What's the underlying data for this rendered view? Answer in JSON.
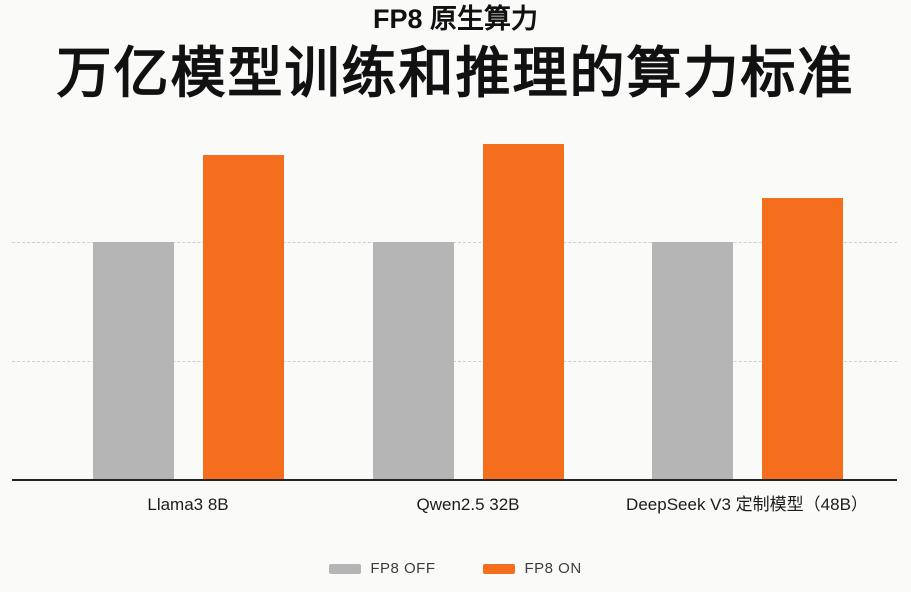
{
  "chart_data": {
    "type": "bar",
    "title": "万亿模型训练和推理的算力标准",
    "subtitle": "FP8 原生算力",
    "categories": [
      "Llama3 8B",
      "Qwen2.5 32B",
      "DeepSeek V3 定制模型（48B）"
    ],
    "series": [
      {
        "name": "FP8 OFF",
        "color": "#b5b5b5",
        "values": [
          2.0,
          2.0,
          2.0
        ]
      },
      {
        "name": "FP8 ON",
        "color": "#f46e1e",
        "values": [
          2.73,
          2.82,
          2.37
        ]
      }
    ],
    "value_note": "y-axis has no tick labels; values estimated in gridline units (baseline = 0, dashed gridlines at 1 and 2)",
    "fp8_on_relative_to_off": [
      1.37,
      1.41,
      1.19
    ],
    "xlabel": "",
    "ylabel": "",
    "ylim": [
      0,
      2.95
    ],
    "gridlines": [
      1,
      2
    ],
    "grid": "horizontal dashed, no y tick labels",
    "legend_position": "bottom-center"
  },
  "colors": {
    "background": "#fafaf9",
    "bar_fp8_off": "#b5b5b5",
    "bar_fp8_on": "#f46e1e",
    "gridline": "#cfcfcf",
    "axis_line": "#242424",
    "title_text": "#111111",
    "axis_label_text": "#1c1c1c",
    "legend_text": "#3d3d3d"
  }
}
